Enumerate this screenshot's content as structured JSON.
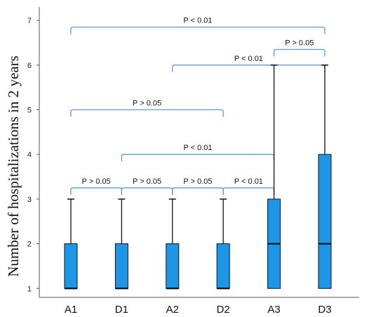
{
  "chart_data": {
    "type": "boxplot",
    "ylabel": "Number of hospitalizations in 2 years",
    "xlabel": "",
    "ylim": [
      0.8,
      7.3
    ],
    "yticks": [
      1,
      2,
      3,
      4,
      5,
      6,
      7
    ],
    "categories": [
      "A1",
      "D1",
      "A2",
      "D2",
      "A3",
      "D3"
    ],
    "boxes": [
      {
        "category": "A1",
        "min": 1,
        "q1": 1,
        "median": 1,
        "q3": 2,
        "max": 3
      },
      {
        "category": "D1",
        "min": 1,
        "q1": 1,
        "median": 1,
        "q3": 2,
        "max": 3
      },
      {
        "category": "A2",
        "min": 1,
        "q1": 1,
        "median": 1,
        "q3": 2,
        "max": 3
      },
      {
        "category": "D2",
        "min": 1,
        "q1": 1,
        "median": 1,
        "q3": 2,
        "max": 3
      },
      {
        "category": "A3",
        "min": 1,
        "q1": 1,
        "median": 2,
        "q3": 3,
        "max": 6
      },
      {
        "category": "D3",
        "min": 1,
        "q1": 1,
        "median": 2,
        "q3": 4,
        "max": 6
      }
    ],
    "box_color": "#1e96e8",
    "bracket_color": "#5b9bd5",
    "annotations": [
      {
        "from": "A1",
        "to": "D3",
        "level": 6.85,
        "label": "P < 0.01"
      },
      {
        "from": "A3",
        "to": "D3",
        "level": 6.35,
        "label": "P > 0.05"
      },
      {
        "from": "A2",
        "to": "D3",
        "level": 6.0,
        "label": "P < 0.01"
      },
      {
        "from": "A1",
        "to": "D2",
        "level": 5.0,
        "label": "P > 0.05"
      },
      {
        "from": "D1",
        "to": "A3",
        "level": 4.0,
        "label": "P < 0.01"
      },
      {
        "from": "A1",
        "to": "D1",
        "level": 3.25,
        "label": "P > 0.05"
      },
      {
        "from": "D1",
        "to": "A2",
        "level": 3.25,
        "label": "P > 0.05"
      },
      {
        "from": "A2",
        "to": "D2",
        "level": 3.25,
        "label": "P > 0.05"
      },
      {
        "from": "D2",
        "to": "A3",
        "level": 3.25,
        "label": "P < 0.01"
      }
    ]
  }
}
